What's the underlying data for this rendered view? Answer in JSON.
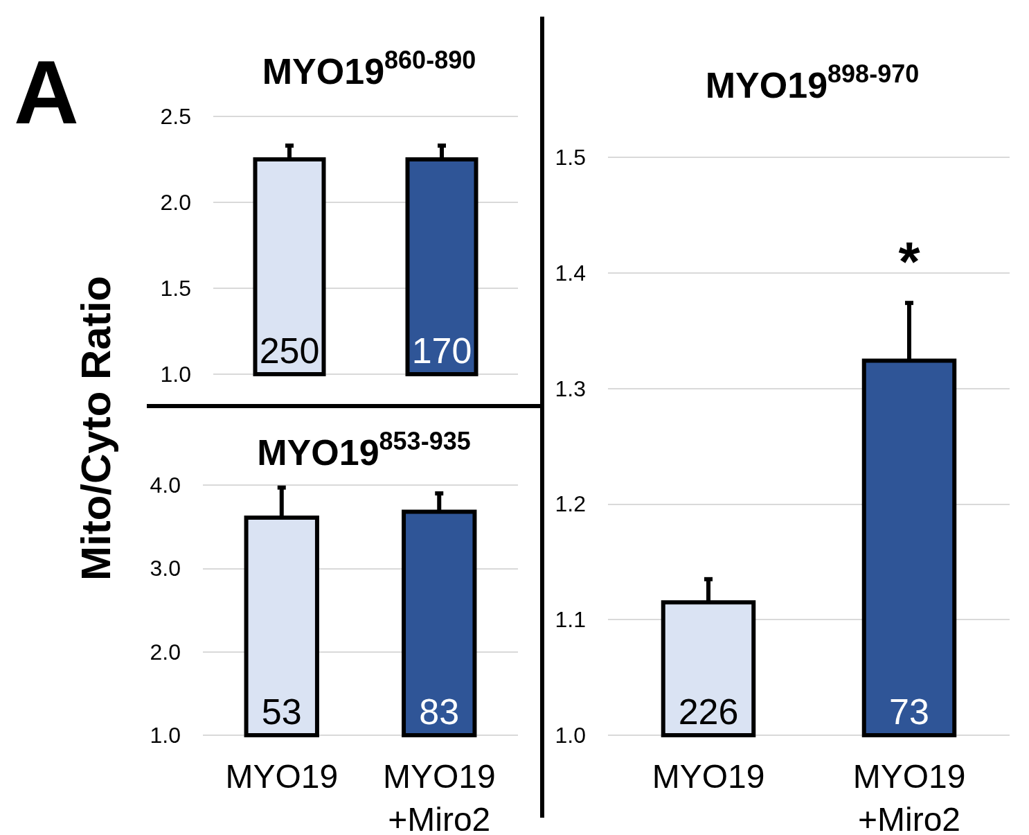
{
  "chart_data": [
    {
      "type": "bar",
      "title": "MYO19$^{860-890}$",
      "ylabel": "Mito/Cyto Ratio",
      "categories": [
        null,
        null
      ],
      "base": [
        1.0,
        1.0
      ],
      "values": [
        1.25,
        1.25
      ],
      "errors": [
        0.08,
        0.08
      ],
      "colors": [
        "#dae3f3",
        "#2f5597"
      ],
      "ylim": [
        1.0,
        2.5
      ],
      "yticks": [
        {
          "value": 1.0,
          "label": "1.0"
        },
        {
          "value": 1.5,
          "label": "1.5"
        },
        {
          "value": 2.0,
          "label": "2.0"
        },
        {
          "value": 2.5,
          "label": "2.5"
        }
      ],
      "grid": "y",
      "tick_labels": "y",
      "annotations": [
        "250",
        "170",
        "A"
      ]
    },
    {
      "type": "bar",
      "title": "MYO19$^{853-935}$",
      "categories": [
        "MYO19",
        "MYO19\n+Miro2"
      ],
      "base": [
        1.0,
        1.0
      ],
      "values": [
        2.61,
        2.68
      ],
      "errors": [
        0.36,
        0.22
      ],
      "colors": [
        "#dae3f3",
        "#2f5597"
      ],
      "ylim": [
        1.0,
        4.0
      ],
      "yticks": [
        {
          "value": 1.0,
          "label": "1.0"
        },
        {
          "value": 2.0,
          "label": "2.0"
        },
        {
          "value": 3.0,
          "label": "3.0"
        },
        {
          "value": 4.0,
          "label": "4.0"
        }
      ],
      "grid": "y",
      "annotations": [
        "53",
        "83"
      ]
    },
    {
      "type": "bar",
      "title": "MYO19$^{898-970}$",
      "categories": [
        "MYO19",
        "MYO19\n+Miro2"
      ],
      "base": [
        1.0,
        1.0
      ],
      "values": [
        0.115,
        0.324
      ],
      "errors": [
        0.02,
        0.05
      ],
      "colors": [
        "#dae3f3",
        "#2f5597"
      ],
      "ylim": [
        1.0,
        1.5
      ],
      "yticks": [
        {
          "value": 1.0,
          "label": "1.0"
        },
        {
          "value": 1.1,
          "label": "1.1"
        },
        {
          "value": 1.2,
          "label": "1.2"
        },
        {
          "value": 1.3,
          "label": "1.3"
        },
        {
          "value": 1.4,
          "label": "1.4"
        },
        {
          "value": 1.5,
          "label": "1.5"
        }
      ],
      "grid": "y",
      "annotations": [
        "226",
        "73",
        {
          "text": "*",
          "x": "MYO19\n+Miro2",
          "y": 1.374
        }
      ]
    }
  ]
}
